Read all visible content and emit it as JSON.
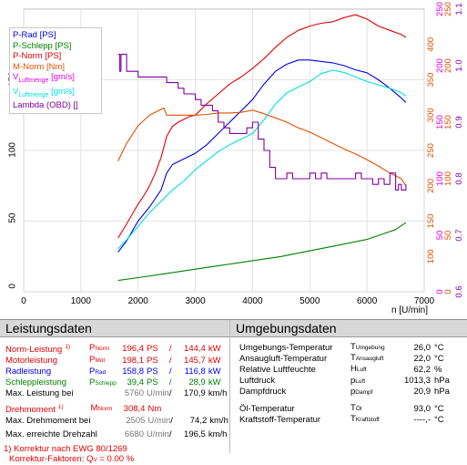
{
  "chart_data": {
    "type": "line",
    "xlabel": "n [U/min]",
    "xlim": [
      0,
      7000
    ],
    "x_ticks": [
      "0",
      "1000",
      "2000",
      "3000",
      "4000",
      "5000",
      "6000",
      "7000"
    ],
    "axes": [
      {
        "key": "ps",
        "color": "#000000",
        "ticks": [
          "0",
          "50",
          "100",
          "150"
        ],
        "range": [
          0,
          200
        ]
      },
      {
        "key": "nm",
        "color": "#e05000",
        "ticks": [
          "100",
          "150",
          "200",
          "250",
          "300",
          "350",
          "400"
        ],
        "range": [
          50,
          450
        ]
      },
      {
        "key": "gms",
        "color": "#e000e0",
        "ticks": [
          "0",
          "50",
          "100",
          "150",
          "200",
          "250"
        ],
        "range": [
          0,
          250
        ]
      },
      {
        "key": "gms2",
        "color": "#e05000",
        "ticks": [
          "0",
          "50",
          "100",
          "150",
          "200",
          "250"
        ],
        "range": [
          0,
          250
        ]
      },
      {
        "key": "lambda",
        "color": "#8000c0",
        "ticks": [
          "0.6",
          "0.7",
          "0.8",
          "0.9",
          "1.0",
          "1.1"
        ],
        "range": [
          0.6,
          1.1
        ]
      }
    ],
    "legend": [
      {
        "label": "P-Rad [PS]",
        "color": "#0000e0"
      },
      {
        "label": "P-Schlepp [PS]",
        "color": "#008000"
      },
      {
        "label": "P-Norm [PS]",
        "color": "#e00000"
      },
      {
        "label": "M-Norm [Nm]",
        "color": "#e05000"
      },
      {
        "label": "V",
        "sub": "Luftmenge",
        "suffix": " [gm/s]",
        "color": "#e000e0"
      },
      {
        "label": "V",
        "sub": "Luftmenge",
        "suffix": " [gm/s]",
        "color": "#00e0e0"
      },
      {
        "label": "Lambda (OBD) []",
        "color": "#8000a0"
      }
    ],
    "series": [
      {
        "name": "P-Norm [PS]",
        "color": "#e00000",
        "axis": "ps",
        "x": [
          1650,
          1800,
          2000,
          2100,
          2200,
          2300,
          2400,
          2500,
          2600,
          2700,
          2800,
          2900,
          3000,
          3200,
          3400,
          3600,
          3800,
          4000,
          4200,
          4400,
          4600,
          4800,
          5000,
          5200,
          5400,
          5600,
          5800,
          6000,
          6200,
          6400,
          6600,
          6680
        ],
        "y": [
          38,
          48,
          62,
          68,
          75,
          84,
          95,
          110,
          117,
          120,
          122,
          124,
          125,
          133,
          140,
          147,
          152,
          158,
          165,
          173,
          180,
          185,
          188,
          190,
          191,
          194,
          196,
          193,
          188,
          185,
          182,
          180
        ]
      },
      {
        "name": "P-Rad [PS]",
        "color": "#0000e0",
        "axis": "ps",
        "x": [
          1650,
          1800,
          2000,
          2200,
          2400,
          2500,
          2600,
          2700,
          2800,
          3000,
          3200,
          3400,
          3600,
          3800,
          4000,
          4200,
          4400,
          4600,
          4800,
          5000,
          5200,
          5400,
          5600,
          5800,
          6000,
          6200,
          6400,
          6600,
          6680
        ],
        "y": [
          28,
          36,
          50,
          60,
          72,
          84,
          90,
          92,
          94,
          98,
          104,
          112,
          120,
          128,
          136,
          147,
          156,
          161,
          164,
          164,
          163,
          162,
          160,
          157,
          155,
          150,
          144,
          137,
          134
        ]
      },
      {
        "name": "P-Schlepp [PS]",
        "color": "#008000",
        "axis": "ps",
        "x": [
          1650,
          2000,
          2500,
          3000,
          3500,
          4000,
          4500,
          5000,
          5500,
          6000,
          6500,
          6680
        ],
        "y": [
          8,
          10,
          13,
          16,
          19,
          22,
          25,
          29,
          33,
          37,
          44,
          49
        ]
      },
      {
        "name": "M-Norm [Nm]",
        "color": "#e05000",
        "axis": "nm",
        "x": [
          1650,
          1800,
          2000,
          2200,
          2400,
          2450,
          2500,
          2600,
          2800,
          3000,
          3200,
          3400,
          3600,
          3800,
          4000,
          4200,
          4400,
          4600,
          4800,
          5000,
          5200,
          5400,
          5600,
          5800,
          6000,
          6200,
          6400,
          6600,
          6680
        ],
        "y": [
          235,
          260,
          285,
          300,
          308,
          310,
          300,
          300,
          300,
          300,
          301,
          303,
          303,
          304,
          307,
          302,
          296,
          290,
          282,
          276,
          268,
          260,
          252,
          245,
          237,
          228,
          218,
          210,
          200
        ]
      },
      {
        "name": "V Luftmenge [gm/s]",
        "color": "#00e0e0",
        "axis": "gms",
        "x": [
          1650,
          1800,
          2000,
          2200,
          2400,
          2600,
          2800,
          3000,
          3200,
          3400,
          3600,
          3800,
          4000,
          4200,
          4400,
          4600,
          4800,
          5000,
          5200,
          5400,
          5600,
          5800,
          6000,
          6200,
          6400,
          6600,
          6680
        ],
        "y": [
          38,
          46,
          58,
          70,
          80,
          90,
          98,
          108,
          116,
          124,
          130,
          135,
          140,
          152,
          166,
          176,
          181,
          186,
          193,
          196,
          194,
          190,
          186,
          183,
          180,
          176,
          173
        ]
      },
      {
        "name": "Lambda (OBD) []",
        "color": "#8000a0",
        "axis": "lambda",
        "step": true,
        "x": [
          1650,
          1680,
          1700,
          1800,
          2000,
          2200,
          2400,
          2500,
          2600,
          2700,
          2800,
          2900,
          3000,
          3100,
          3200,
          3300,
          3400,
          3500,
          3600,
          3700,
          3800,
          3900,
          4000,
          4100,
          4200,
          4300,
          4400,
          4500,
          4600,
          4700,
          4800,
          4900,
          5000,
          5100,
          5200,
          5300,
          5400,
          5500,
          5600,
          5700,
          5800,
          5900,
          6000,
          6100,
          6200,
          6300,
          6400,
          6500,
          6550,
          6600,
          6680
        ],
        "y": [
          1.02,
          0.99,
          1.02,
          0.99,
          0.98,
          0.98,
          0.98,
          0.97,
          0.97,
          0.96,
          0.95,
          0.95,
          0.94,
          0.93,
          0.93,
          0.92,
          0.9,
          0.89,
          0.88,
          0.88,
          0.88,
          0.89,
          0.9,
          0.87,
          0.85,
          0.82,
          0.8,
          0.8,
          0.81,
          0.8,
          0.8,
          0.8,
          0.81,
          0.8,
          0.81,
          0.8,
          0.8,
          0.8,
          0.8,
          0.8,
          0.81,
          0.8,
          0.8,
          0.79,
          0.8,
          0.79,
          0.81,
          0.78,
          0.79,
          0.78,
          0.79
        ]
      }
    ]
  },
  "legend_rows": [
    {
      "text": "P-Rad [PS]",
      "color": "#0000e0"
    },
    {
      "text": "P-Schlepp [PS]",
      "color": "#008000"
    },
    {
      "text": "P-Norm [PS]",
      "color": "#e00000"
    },
    {
      "text": "M-Norm [Nm]",
      "color": "#e05000"
    },
    {
      "pre": "V",
      "sub": "Luftmenge",
      "post": " [gm/s]",
      "color": "#e000e0"
    },
    {
      "pre": "V",
      "sub": "Luftmenge",
      "post": " [gm/s]",
      "color": "#00e0e0"
    },
    {
      "text": "Lambda (OBD) []",
      "color": "#8000a0"
    }
  ],
  "leistungsdaten": {
    "title": "Leistungsdaten",
    "rows": [
      {
        "label": "Norm-Leistung",
        "sup": "1)",
        "sym": "P",
        "symsub": "Norm",
        "v1": "196,4",
        "u1": "PS",
        "sep": "/",
        "v2": "144,4",
        "u2": "kW",
        "color": "red"
      },
      {
        "label": "Motorleistung",
        "sup": "",
        "sym": "P",
        "symsub": "Mot",
        "v1": "198,1",
        "u1": "PS",
        "sep": "/",
        "v2": "145,7",
        "u2": "kW",
        "color": "red"
      },
      {
        "label": "Radleistung",
        "sup": "",
        "sym": "P",
        "symsub": "Rad",
        "v1": "158,8",
        "u1": "PS",
        "sep": "/",
        "v2": "116,8",
        "u2": "kW",
        "color": "blue"
      },
      {
        "label": "Schleppleistung",
        "sup": "",
        "sym": "P",
        "symsub": "Schlepp",
        "v1": "39,4",
        "u1": "PS",
        "sep": "/",
        "v2": "28,9",
        "u2": "kW",
        "color": "green"
      },
      {
        "label": "Max. Leistung bei",
        "sup": "",
        "sym": "",
        "symsub": "",
        "v1": "5760",
        "u1": "U/min",
        "sep": "/",
        "v2": "170,9",
        "u2": "km/h",
        "color": "black"
      }
    ],
    "torque_rows": [
      {
        "label": "Drehmoment",
        "sup": "1)",
        "sym": "M",
        "symsub": "Norm",
        "v1": "308,4",
        "u1": "Nm",
        "sep": "",
        "v2": "",
        "u2": "",
        "color": "red"
      },
      {
        "label": "Max. Drehmoment bei",
        "sup": "",
        "sym": "",
        "symsub": "",
        "v1": "2505",
        "u1": "U/min",
        "sep": "/",
        "v2": "74,2",
        "u2": "km/h",
        "color": "black"
      }
    ],
    "max_rpm_row": {
      "label": "Max. erreichte Drehzahl",
      "v1": "6680",
      "u1": "U/min",
      "sep": "/",
      "v2": "196,5",
      "u2": "km/h"
    },
    "footnote1": "1) Korrektur nach EWG 80/1269",
    "footnote2_pre": "Korrektur-Faktoren: Q",
    "footnote2_sub": "V",
    "footnote2_post": " =   0.00 %"
  },
  "umgebungsdaten": {
    "title": "Umgebungsdaten",
    "rows": [
      {
        "label": "Umgebungs-Temperatur",
        "sym": "T",
        "symsub": "Umgebung",
        "value": "26,0",
        "unit": "°C"
      },
      {
        "label": "Ansaugluft-Temperatur",
        "sym": "T",
        "symsub": "Ansaugluft",
        "value": "22,0",
        "unit": "°C"
      },
      {
        "label": "Relative Luftfeuchte",
        "sym": "H",
        "symsub": "Luft",
        "value": "62,2",
        "unit": "%"
      },
      {
        "label": "Luftdruck",
        "sym": "p",
        "symsub": "Luft",
        "value": "1013,3",
        "unit": "hPa"
      },
      {
        "label": "Dampfdruck",
        "sym": "p",
        "symsub": "Dampf",
        "value": "20,9",
        "unit": "hPa"
      }
    ],
    "rows2": [
      {
        "label": "Öl-Temperatur",
        "sym": "T",
        "symsub": "Öl",
        "value": "93,0",
        "unit": "°C"
      },
      {
        "label": "Kraftstoff-Temperatur",
        "sym": "T",
        "symsub": "Kraftstoff",
        "value": "----,-",
        "unit": "°C"
      }
    ]
  }
}
